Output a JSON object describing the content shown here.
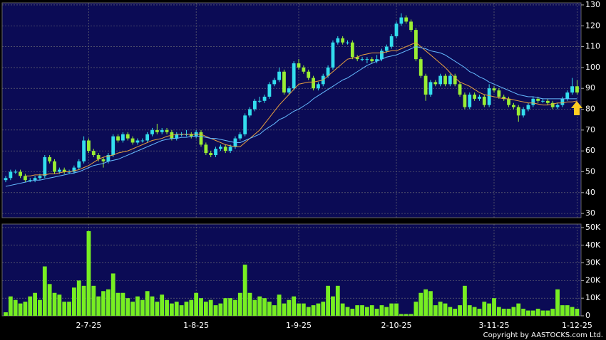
{
  "chart_data": [
    {
      "type": "candlestick",
      "up_color": "#33ddee",
      "down_color": "#99ee33",
      "ylim": [
        28,
        131
      ],
      "yticks": [
        30,
        40,
        50,
        60,
        70,
        80,
        90,
        100,
        110,
        120,
        130
      ],
      "grid": true,
      "open": [
        46,
        47,
        50,
        50,
        48,
        46,
        46,
        47,
        48,
        57,
        55,
        50,
        51,
        50,
        50,
        52,
        55,
        65,
        60,
        58,
        56,
        55,
        58,
        67,
        65,
        68,
        66,
        64,
        65,
        65,
        68,
        70,
        69,
        70,
        69,
        66,
        68,
        68,
        68,
        67,
        69,
        63,
        59,
        58,
        61,
        62,
        60,
        62,
        66,
        68,
        77,
        80,
        84,
        84,
        86,
        92,
        94,
        98,
        88,
        90,
        102,
        100,
        98,
        95,
        90,
        92,
        96,
        100,
        112,
        114,
        112,
        112,
        105,
        104,
        104,
        104,
        103,
        104,
        108,
        110,
        115,
        121,
        124,
        122,
        118,
        104,
        96,
        87,
        93,
        92,
        96,
        92,
        96,
        92,
        87,
        81,
        87,
        85,
        86,
        82,
        90,
        89,
        86,
        85,
        82,
        81,
        77,
        80,
        82,
        85,
        84,
        84,
        83,
        81,
        82,
        85,
        88,
        91
      ],
      "high": [
        48,
        51,
        51,
        51,
        49,
        47,
        48,
        49,
        58,
        58,
        56,
        52,
        52,
        51,
        53,
        56,
        67,
        66,
        61,
        59,
        57,
        59,
        68,
        68,
        69,
        69,
        67,
        66,
        66,
        69,
        71,
        73,
        71,
        71,
        70,
        69,
        69,
        70,
        69,
        70,
        70,
        64,
        60,
        62,
        63,
        63,
        63,
        67,
        69,
        78,
        81,
        85,
        86,
        87,
        93,
        95,
        100,
        99,
        91,
        103,
        104,
        101,
        99,
        96,
        93,
        97,
        101,
        113,
        115,
        115,
        113,
        113,
        106,
        105,
        105,
        105,
        106,
        109,
        111,
        116,
        122,
        126,
        125,
        123,
        119,
        105,
        97,
        94,
        94,
        97,
        97,
        97,
        97,
        93,
        88,
        88,
        88,
        87,
        87,
        92,
        91,
        90,
        87,
        86,
        83,
        82,
        81,
        83,
        86,
        86,
        85,
        85,
        84,
        83,
        86,
        89,
        95,
        94
      ],
      "low": [
        45,
        46,
        49,
        47,
        45,
        45,
        45,
        46,
        47,
        54,
        49,
        49,
        49,
        49,
        49,
        51,
        54,
        59,
        57,
        55,
        52,
        54,
        57,
        64,
        64,
        65,
        63,
        63,
        64,
        64,
        67,
        68,
        68,
        68,
        65,
        65,
        67,
        67,
        66,
        66,
        62,
        58,
        57,
        57,
        60,
        59,
        59,
        61,
        65,
        67,
        76,
        79,
        83,
        83,
        85,
        91,
        93,
        87,
        87,
        89,
        99,
        97,
        94,
        89,
        89,
        91,
        95,
        99,
        111,
        111,
        111,
        104,
        103,
        103,
        102,
        102,
        102,
        103,
        107,
        109,
        114,
        120,
        121,
        117,
        103,
        95,
        84,
        86,
        91,
        91,
        91,
        91,
        91,
        86,
        80,
        80,
        84,
        84,
        81,
        81,
        88,
        85,
        84,
        81,
        80,
        74,
        76,
        79,
        81,
        83,
        83,
        82,
        80,
        80,
        81,
        84,
        87,
        87
      ],
      "close": [
        47,
        50,
        50,
        48,
        46,
        46,
        47,
        48,
        57,
        55,
        50,
        51,
        50,
        50,
        52,
        55,
        65,
        60,
        58,
        56,
        55,
        58,
        67,
        65,
        68,
        66,
        64,
        65,
        65,
        68,
        70,
        69,
        70,
        69,
        66,
        68,
        68,
        68,
        67,
        69,
        63,
        59,
        58,
        61,
        62,
        60,
        62,
        66,
        68,
        77,
        80,
        84,
        84,
        86,
        92,
        94,
        98,
        88,
        90,
        102,
        100,
        98,
        95,
        90,
        92,
        96,
        100,
        112,
        114,
        112,
        112,
        105,
        104,
        104,
        104,
        103,
        104,
        108,
        110,
        115,
        121,
        124,
        122,
        118,
        104,
        96,
        87,
        93,
        92,
        96,
        92,
        96,
        92,
        87,
        81,
        87,
        85,
        86,
        82,
        90,
        89,
        86,
        85,
        82,
        81,
        77,
        80,
        82,
        85,
        84,
        84,
        83,
        81,
        82,
        85,
        88,
        91,
        88
      ],
      "lines": [
        {
          "color": "#e8a040",
          "values": [
            null,
            null,
            null,
            null,
            48,
            48,
            48.5,
            48.5,
            48.5,
            49,
            49,
            49.5,
            50,
            50,
            50.5,
            51,
            52,
            53,
            54.5,
            56,
            57,
            57.5,
            58,
            59,
            59.5,
            60,
            61,
            62,
            63,
            64,
            65,
            65.5,
            66,
            67,
            67.5,
            68,
            68,
            68,
            68,
            68,
            68,
            67,
            66,
            65,
            64,
            63,
            62.5,
            62,
            62,
            64,
            66,
            68,
            70,
            73,
            76,
            79,
            82,
            84.5,
            87,
            89.5,
            92,
            92.5,
            93,
            93,
            93.5,
            94,
            96,
            98,
            100,
            102,
            104,
            104.5,
            105,
            106,
            106.5,
            107,
            107,
            107,
            107.5,
            108,
            108,
            109,
            110,
            111,
            112,
            110,
            108,
            106,
            104,
            102,
            100,
            97.5,
            95,
            93,
            92,
            91,
            89.5,
            88,
            87,
            86.5,
            86,
            85.5,
            85,
            85,
            84.5,
            84,
            83.5,
            83,
            83,
            82.5,
            82,
            82,
            82.5,
            83,
            83,
            83.5,
            83.5,
            84
          ]
        },
        {
          "color": "#66bbff",
          "values": [
            43,
            43.5,
            44,
            44.5,
            45,
            45.5,
            46,
            46,
            46.5,
            47,
            47.5,
            48,
            48.5,
            49,
            49.5,
            50,
            51,
            52,
            53,
            53.5,
            54,
            55,
            55.5,
            56,
            57,
            58,
            59,
            60,
            61,
            62,
            63,
            64,
            65,
            65.5,
            66,
            66,
            66.5,
            66.5,
            67,
            67,
            67,
            66.5,
            66,
            66,
            65.5,
            65,
            64.5,
            64,
            64,
            65,
            66,
            67,
            68,
            70,
            71.5,
            73,
            75,
            76,
            77.5,
            79,
            80,
            81.5,
            83,
            85,
            86.5,
            88,
            89.5,
            91,
            92.5,
            94,
            95,
            96.5,
            98,
            99.5,
            101,
            102,
            103,
            104,
            105,
            105.5,
            106,
            107,
            108,
            109,
            110,
            109.5,
            109,
            108,
            107.5,
            107,
            106,
            104.5,
            103,
            101.5,
            100,
            98,
            97,
            95.5,
            94.5,
            93,
            92,
            91,
            90,
            89,
            88,
            87,
            86.5,
            86,
            86,
            85.5,
            85,
            85,
            85,
            85,
            85,
            85,
            85,
            85
          ]
        }
      ]
    },
    {
      "type": "bar",
      "color": "#77ee22",
      "ylim": [
        0,
        52000
      ],
      "yticks": [
        0,
        {
          "value": 10000,
          "label": "10K"
        },
        {
          "value": 20000,
          "label": "20K"
        },
        {
          "value": 30000,
          "label": "30K"
        },
        {
          "value": 40000,
          "label": "40K"
        },
        {
          "value": 50000,
          "label": "50K"
        }
      ],
      "grid": true,
      "x": [
        null,
        null,
        null,
        null,
        null,
        null,
        null,
        null,
        null,
        null,
        null,
        null,
        null,
        null,
        null,
        null,
        null,
        "2-7-25",
        null,
        null,
        null,
        null,
        null,
        null,
        null,
        null,
        null,
        null,
        null,
        null,
        null,
        null,
        null,
        null,
        null,
        null,
        null,
        null,
        null,
        "1-8-25",
        null,
        null,
        null,
        null,
        null,
        null,
        null,
        null,
        null,
        null,
        null,
        null,
        null,
        null,
        null,
        null,
        null,
        null,
        null,
        null,
        "1-9-25",
        null,
        null,
        null,
        null,
        null,
        null,
        null,
        null,
        null,
        null,
        null,
        null,
        null,
        null,
        null,
        null,
        null,
        null,
        null,
        "2-10-25",
        null,
        null,
        null,
        null,
        null,
        null,
        null,
        null,
        null,
        null,
        null,
        null,
        null,
        null,
        null,
        null,
        null,
        null,
        null,
        "3-11-25",
        null,
        null,
        null,
        null,
        null,
        null,
        null,
        null,
        null,
        null,
        null,
        null,
        null,
        null,
        null,
        null,
        "1-12-25"
      ],
      "values": [
        2000,
        11000,
        9000,
        7000,
        8000,
        11000,
        13000,
        9000,
        28000,
        18000,
        13000,
        12000,
        8000,
        8000,
        16000,
        20000,
        17000,
        48000,
        17000,
        11000,
        14000,
        15000,
        24000,
        13000,
        13000,
        10000,
        8000,
        11000,
        9000,
        14000,
        11000,
        8000,
        12000,
        9000,
        7000,
        8000,
        6000,
        8000,
        9000,
        13000,
        10000,
        8000,
        9000,
        6000,
        7000,
        10000,
        10000,
        9000,
        13000,
        29000,
        13000,
        9000,
        11000,
        10000,
        8000,
        6000,
        12000,
        7000,
        9000,
        11000,
        7000,
        7000,
        5000,
        6000,
        7000,
        8000,
        17000,
        11000,
        17000,
        7000,
        5000,
        4000,
        6000,
        6000,
        5000,
        6000,
        4000,
        6000,
        5000,
        7000,
        7000,
        1000,
        1000,
        1000,
        8000,
        13000,
        15000,
        14000,
        6000,
        8000,
        7000,
        5000,
        4000,
        6000,
        17000,
        6000,
        5000,
        4000,
        8000,
        7000,
        10000,
        5000,
        4000,
        4000,
        5000,
        7000,
        4000,
        3000,
        3000,
        4000,
        3000,
        3000,
        4000,
        15000,
        6000,
        6000,
        5000,
        4000
      ]
    }
  ],
  "footer": "Copyright by AASTOCKS.com Ltd."
}
